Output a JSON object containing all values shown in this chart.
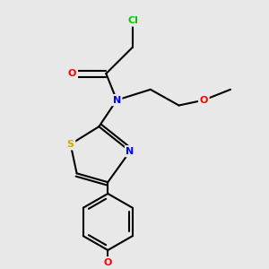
{
  "bg_color": "#e8e8e8",
  "bond_color": "#000000",
  "atom_colors": {
    "Cl": "#00cc00",
    "O": "#ff0000",
    "N": "#0000ff",
    "S": "#ccaa00",
    "C": "#000000"
  },
  "bond_width": 1.5,
  "dbo": 0.008,
  "figsize": [
    3.0,
    3.0
  ],
  "dpi": 100
}
